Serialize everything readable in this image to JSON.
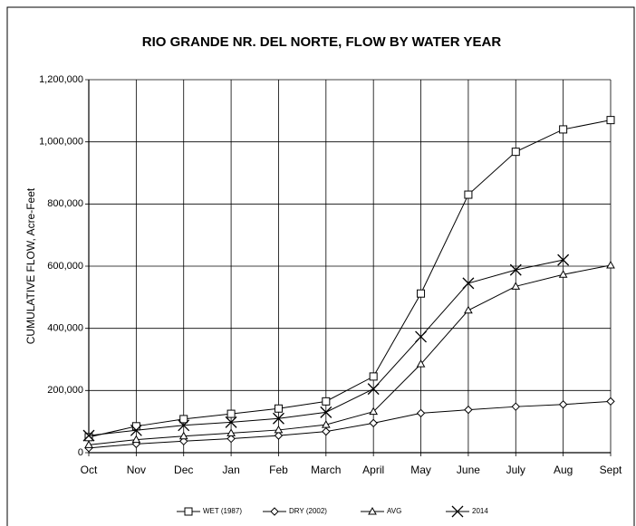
{
  "chart_data": {
    "type": "line",
    "title": "RIO GRANDE NR. DEL NORTE, FLOW BY WATER YEAR",
    "y_label": "CUMULATIVE FLOW, Acre-Feet",
    "categories": [
      "Oct",
      "Nov",
      "Dec",
      "Jan",
      "Feb",
      "March",
      "April",
      "May",
      "June",
      "July",
      "Aug",
      "Sept"
    ],
    "ylim": [
      0,
      1200000
    ],
    "yticks": [
      0,
      {
        "value": 200000,
        "label": "200,000"
      },
      {
        "value": 400000,
        "label": "400,000"
      },
      {
        "value": 600000,
        "label": "600,000"
      },
      {
        "value": 800000,
        "label": "800,000"
      },
      {
        "value": 1000000,
        "label": "1,000,000"
      },
      {
        "value": 1200000,
        "label": "1,200,000"
      }
    ],
    "grid": true,
    "legend": "bottom",
    "series": [
      {
        "name": "WET (1987)",
        "color": "#000000",
        "marker": "square",
        "values": [
          50000,
          85000,
          108000,
          125000,
          142000,
          165000,
          245000,
          512000,
          830000,
          968000,
          1040000,
          1070000
        ]
      },
      {
        "name": "DRY (2002)",
        "color": "#000000",
        "marker": "diamond",
        "values": [
          15000,
          28000,
          37000,
          45000,
          55000,
          68000,
          95000,
          127000,
          138000,
          148000,
          155000,
          165000
        ]
      },
      {
        "name": "AVG",
        "color": "#000000",
        "marker": "triangle",
        "values": [
          25000,
          42000,
          53000,
          63000,
          73000,
          90000,
          132000,
          285000,
          458000,
          535000,
          573000,
          603000
        ]
      },
      {
        "name": "2014",
        "color": "#000000",
        "marker": "x",
        "values": [
          55000,
          72000,
          88000,
          98000,
          110000,
          130000,
          205000,
          373000,
          545000,
          588000,
          620000,
          null
        ]
      }
    ]
  }
}
